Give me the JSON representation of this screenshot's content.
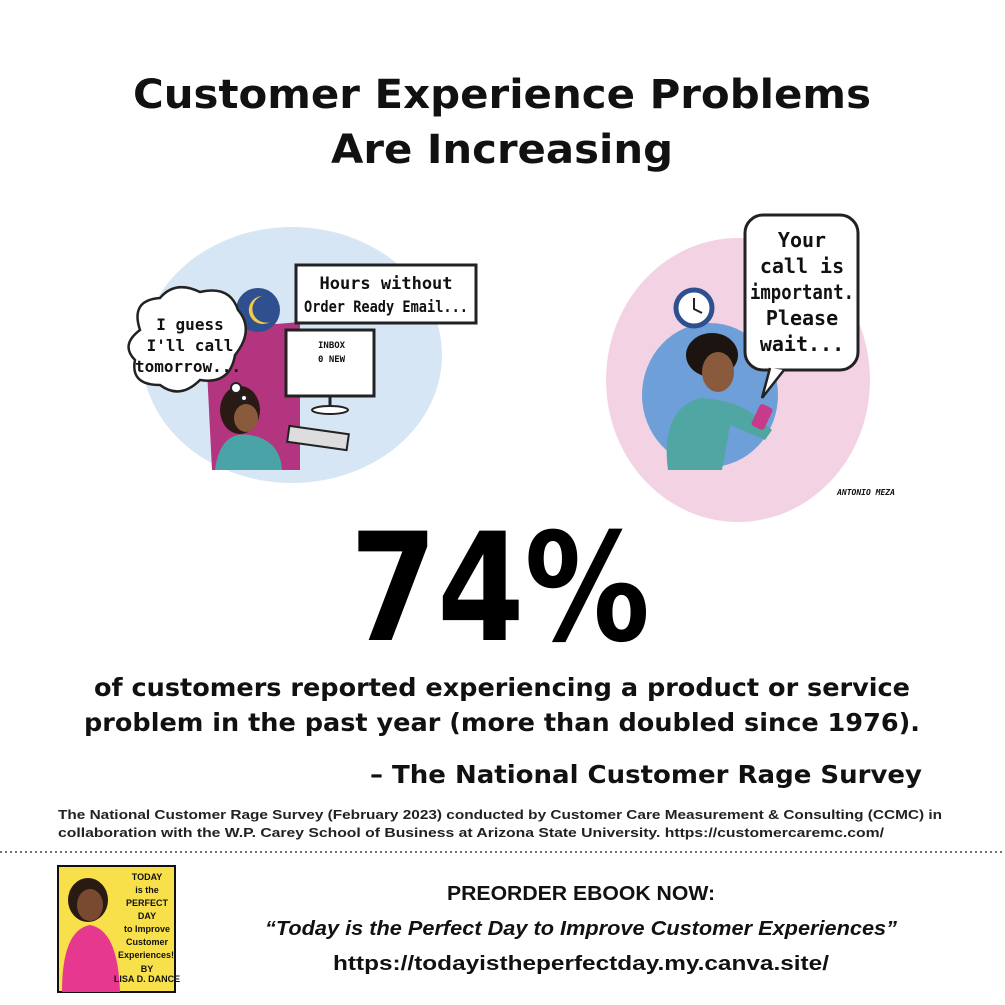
{
  "title": [
    "Customer Experience Problems",
    "Are Increasing"
  ],
  "left_illustration": {
    "thought_bubble": [
      "I guess",
      "I'll call",
      "tomorrow..."
    ],
    "sign": [
      "Hours without",
      "Order Ready Email..."
    ],
    "screen": [
      "INBOX",
      "0 NEW"
    ]
  },
  "right_illustration": {
    "speech_bubble": [
      "Your",
      "call is",
      "important.",
      "Please",
      "wait..."
    ],
    "signature": "ANTONIO MEZA"
  },
  "statistic": "74%",
  "description": [
    "of customers reported experiencing a product or service",
    "problem in the past year (more than doubled since 1976)."
  ],
  "attribution": "– The National Customer Rage Survey",
  "footnote": [
    "The National Customer Rage Survey (February 2023) conducted by Customer Care Measurement & Consulting (CCMC) in",
    "collaboration with the W.P. Carey School of Business at Arizona State University. https://customercaremc.com/"
  ],
  "book_cover": [
    "TODAY",
    "is the",
    "PERFECT",
    "DAY",
    "to Improve",
    "Customer",
    "Experiences!",
    "BY",
    "LISA D. DANCE"
  ],
  "promo": {
    "heading": "PREORDER EBOOK NOW:",
    "book_title": "“Today is the Perfect Day to Improve Customer Experiences”",
    "url": "https://todayistheperfectday.my.canva.site/"
  }
}
